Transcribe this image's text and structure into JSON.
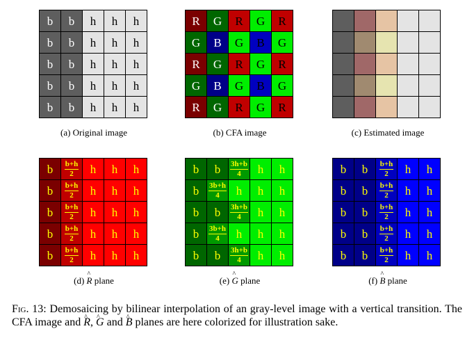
{
  "colors": {
    "dark_gray": "#5e5e5e",
    "light_gray": "#e4e4e4",
    "red": "#c00000",
    "bright_red": "#ff0000",
    "dark_red": "#7a0000",
    "green": "#009900",
    "bright_green": "#00ee00",
    "dark_green": "#006600",
    "blue": "#0000c0",
    "bright_blue": "#0000ff",
    "dark_blue": "#000088",
    "est_rose": "#a06868",
    "est_tan": "#e6c4a4",
    "est_khaki": "#a08a70",
    "est_pale": "#e6e4b0",
    "yellow_text": "#ffff00"
  },
  "panels": [
    {
      "id": "a",
      "caption": "(a) Original image",
      "rows": [
        [
          "b",
          "b",
          "h",
          "h",
          "h"
        ],
        [
          "b",
          "b",
          "h",
          "h",
          "h"
        ],
        [
          "b",
          "b",
          "h",
          "h",
          "h"
        ],
        [
          "b",
          "b",
          "h",
          "h",
          "h"
        ],
        [
          "b",
          "b",
          "h",
          "h",
          "h"
        ]
      ]
    },
    {
      "id": "b",
      "caption": "(b) CFA image",
      "rows": [
        [
          "R",
          "G",
          "R",
          "G",
          "R"
        ],
        [
          "G",
          "B",
          "G",
          "B",
          "G"
        ],
        [
          "R",
          "G",
          "R",
          "G",
          "R"
        ],
        [
          "G",
          "B",
          "G",
          "B",
          "G"
        ],
        [
          "R",
          "G",
          "R",
          "G",
          "R"
        ]
      ]
    },
    {
      "id": "c",
      "caption": "(c) Estimated image",
      "rows": [
        [
          "",
          "",
          "",
          "",
          ""
        ],
        [
          "",
          "",
          "",
          "",
          ""
        ],
        [
          "",
          "",
          "",
          "",
          ""
        ],
        [
          "",
          "",
          "",
          "",
          ""
        ],
        [
          "",
          "",
          "",
          "",
          ""
        ]
      ]
    },
    {
      "id": "d",
      "caption_prefix": "(d) ",
      "caption_letter": "R",
      "caption_suffix": " plane",
      "rows": [
        [
          "b",
          "b+h/2",
          "h",
          "h",
          "h"
        ],
        [
          "b",
          "b+h/2",
          "h",
          "h",
          "h"
        ],
        [
          "b",
          "b+h/2",
          "h",
          "h",
          "h"
        ],
        [
          "b",
          "b+h/2",
          "h",
          "h",
          "h"
        ],
        [
          "b",
          "b+h/2",
          "h",
          "h",
          "h"
        ]
      ]
    },
    {
      "id": "e",
      "caption_prefix": "(e) ",
      "caption_letter": "G",
      "caption_suffix": " plane",
      "rows": [
        [
          "b",
          "b",
          "3h+b/4",
          "h",
          "h"
        ],
        [
          "b",
          "3b+h/4",
          "h",
          "h",
          "h"
        ],
        [
          "b",
          "b",
          "3h+b/4",
          "h",
          "h"
        ],
        [
          "b",
          "3b+h/4",
          "h",
          "h",
          "h"
        ],
        [
          "b",
          "b",
          "3h+b/4",
          "h",
          "h"
        ]
      ]
    },
    {
      "id": "f",
      "caption_prefix": "(f) ",
      "caption_letter": "B",
      "caption_suffix": " plane",
      "rows": [
        [
          "b",
          "b",
          "b+h/2",
          "h",
          "h"
        ],
        [
          "b",
          "b",
          "b+h/2",
          "h",
          "h"
        ],
        [
          "b",
          "b",
          "b+h/2",
          "h",
          "h"
        ],
        [
          "b",
          "b",
          "b+h/2",
          "h",
          "h"
        ],
        [
          "b",
          "b",
          "b+h/2",
          "h",
          "h"
        ]
      ]
    }
  ],
  "figure_caption": {
    "label": "Fig. 13:",
    "part1": "Demosaicing by bilinear interpolation of an gray-level image with a vertical transition. The CFA image and ",
    "r": "R",
    "sep1": ", ",
    "g": "G",
    "sep2": " and ",
    "b": "B",
    "part2": " planes are here colorized for illustration sake."
  }
}
